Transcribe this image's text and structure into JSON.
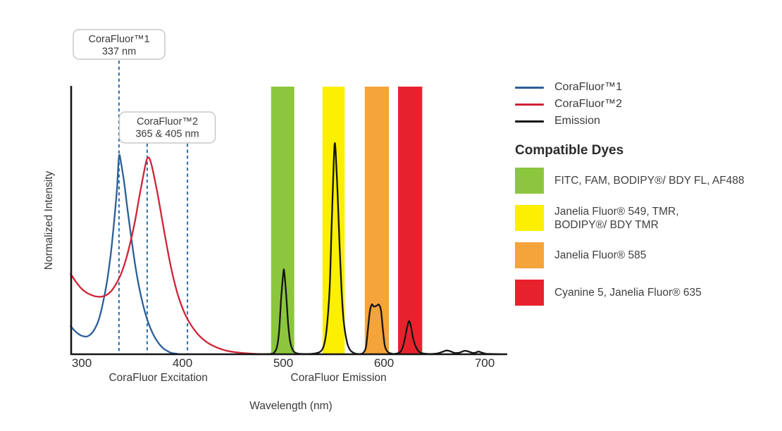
{
  "chart_data": {
    "type": "line",
    "title": "",
    "xlabel": "Wavelength (nm)",
    "ylabel": "Normalized Intensity",
    "x_ticks": [
      300,
      400,
      500,
      600,
      700
    ],
    "xlim": [
      289,
      722
    ],
    "ylim": [
      0,
      1
    ],
    "grid": false,
    "x_sections": [
      {
        "label": "CoraFluor Excitation",
        "center_nm": 376
      },
      {
        "label": "CoraFluor Emission",
        "center_nm": 555
      }
    ],
    "annotations": [
      {
        "lines": [
          "CoraFluor™1",
          "337 nm"
        ],
        "marker_nm": [
          337
        ]
      },
      {
        "lines": [
          "CoraFluor™2",
          "365 & 405 nm"
        ],
        "marker_nm": [
          365,
          405
        ]
      }
    ],
    "marker_color": "#2E6DA8",
    "bands": [
      {
        "name": "green-filter",
        "range_nm": [
          488,
          511
        ],
        "color": "#8CC63E"
      },
      {
        "name": "yellow-filter",
        "range_nm": [
          539,
          561
        ],
        "color": "#FCEF02"
      },
      {
        "name": "orange-filter",
        "range_nm": [
          581,
          605
        ],
        "color": "#F5A33B"
      },
      {
        "name": "red-filter",
        "range_nm": [
          614,
          638
        ],
        "color": "#E8222D"
      }
    ],
    "series": [
      {
        "name": "CoraFluor™1",
        "color": "#2B5F98",
        "points": [
          [
            289,
            0.105
          ],
          [
            293,
            0.088
          ],
          [
            297,
            0.075
          ],
          [
            301,
            0.068
          ],
          [
            305,
            0.066
          ],
          [
            309,
            0.075
          ],
          [
            313,
            0.095
          ],
          [
            317,
            0.13
          ],
          [
            321,
            0.19
          ],
          [
            325,
            0.27
          ],
          [
            329,
            0.38
          ],
          [
            332,
            0.49
          ],
          [
            335,
            0.62
          ],
          [
            337,
            0.74
          ],
          [
            339,
            0.715
          ],
          [
            342,
            0.645
          ],
          [
            345,
            0.555
          ],
          [
            349,
            0.44
          ],
          [
            353,
            0.335
          ],
          [
            357,
            0.25
          ],
          [
            361,
            0.183
          ],
          [
            365,
            0.13
          ],
          [
            369,
            0.09
          ],
          [
            373,
            0.06
          ],
          [
            377,
            0.038
          ],
          [
            381,
            0.022
          ],
          [
            385,
            0.012
          ],
          [
            389,
            0.005
          ],
          [
            394,
            0.002
          ],
          [
            398,
            0
          ]
        ]
      },
      {
        "name": "CoraFluor™2",
        "color": "#D02337",
        "points": [
          [
            289,
            0.3
          ],
          [
            294,
            0.272
          ],
          [
            299,
            0.248
          ],
          [
            304,
            0.232
          ],
          [
            309,
            0.222
          ],
          [
            314,
            0.216
          ],
          [
            319,
            0.215
          ],
          [
            324,
            0.22
          ],
          [
            329,
            0.235
          ],
          [
            334,
            0.262
          ],
          [
            339,
            0.3
          ],
          [
            344,
            0.355
          ],
          [
            349,
            0.43
          ],
          [
            353,
            0.5
          ],
          [
            357,
            0.585
          ],
          [
            361,
            0.665
          ],
          [
            364,
            0.72
          ],
          [
            366,
            0.735
          ],
          [
            368,
            0.725
          ],
          [
            371,
            0.68
          ],
          [
            375,
            0.605
          ],
          [
            379,
            0.52
          ],
          [
            383,
            0.435
          ],
          [
            387,
            0.355
          ],
          [
            391,
            0.285
          ],
          [
            395,
            0.228
          ],
          [
            399,
            0.182
          ],
          [
            403,
            0.146
          ],
          [
            407,
            0.118
          ],
          [
            412,
            0.09
          ],
          [
            417,
            0.068
          ],
          [
            422,
            0.051
          ],
          [
            428,
            0.036
          ],
          [
            435,
            0.024
          ],
          [
            443,
            0.014
          ],
          [
            452,
            0.008
          ],
          [
            462,
            0.004
          ],
          [
            474,
            0.001
          ],
          [
            488,
            0
          ]
        ]
      },
      {
        "name": "Emission",
        "color": "#151515",
        "points": [
          [
            468,
            0
          ],
          [
            486,
            0.001
          ],
          [
            491,
            0.006
          ],
          [
            494,
            0.03
          ],
          [
            496,
            0.09
          ],
          [
            498,
            0.21
          ],
          [
            500,
            0.3
          ],
          [
            501,
            0.31
          ],
          [
            503,
            0.22
          ],
          [
            505,
            0.11
          ],
          [
            507,
            0.045
          ],
          [
            510,
            0.013
          ],
          [
            514,
            0.003
          ],
          [
            520,
            0.001
          ],
          [
            530,
            0.002
          ],
          [
            536,
            0.008
          ],
          [
            540,
            0.028
          ],
          [
            543,
            0.09
          ],
          [
            546,
            0.24
          ],
          [
            548,
            0.47
          ],
          [
            550,
            0.7
          ],
          [
            551,
            0.784
          ],
          [
            552,
            0.76
          ],
          [
            554,
            0.6
          ],
          [
            556,
            0.4
          ],
          [
            558,
            0.235
          ],
          [
            560,
            0.125
          ],
          [
            563,
            0.05
          ],
          [
            566,
            0.018
          ],
          [
            570,
            0.005
          ],
          [
            575,
            0.001
          ],
          [
            579,
            0.004
          ],
          [
            582,
            0.025
          ],
          [
            584,
            0.09
          ],
          [
            586,
            0.16
          ],
          [
            588,
            0.186
          ],
          [
            590,
            0.178
          ],
          [
            593,
            0.182
          ],
          [
            595,
            0.185
          ],
          [
            597,
            0.165
          ],
          [
            599,
            0.09
          ],
          [
            601,
            0.03
          ],
          [
            604,
            0.008
          ],
          [
            608,
            0.002
          ],
          [
            613,
            0.003
          ],
          [
            617,
            0.012
          ],
          [
            620,
            0.045
          ],
          [
            623,
            0.1
          ],
          [
            625,
            0.124
          ],
          [
            627,
            0.1
          ],
          [
            629,
            0.058
          ],
          [
            632,
            0.025
          ],
          [
            635,
            0.009
          ],
          [
            639,
            0.003
          ],
          [
            646,
            0.001
          ],
          [
            653,
            0.003
          ],
          [
            658,
            0.009
          ],
          [
            662,
            0.014
          ],
          [
            666,
            0.011
          ],
          [
            670,
            0.005
          ],
          [
            675,
            0.006
          ],
          [
            680,
            0.013
          ],
          [
            684,
            0.01
          ],
          [
            688,
            0.005
          ],
          [
            691,
            0.006
          ],
          [
            694,
            0.01
          ],
          [
            697,
            0.006
          ],
          [
            701,
            0.002
          ],
          [
            707,
            0.001
          ],
          [
            715,
            0
          ]
        ]
      }
    ]
  },
  "legend": {
    "items": [
      {
        "label": "CoraFluor™1",
        "color": "#2B5F98"
      },
      {
        "label": "CoraFluor™2",
        "color": "#D02337"
      },
      {
        "label": "Emission",
        "color": "#151515"
      }
    ]
  },
  "compatible_dyes": {
    "heading": "Compatible Dyes",
    "items": [
      {
        "color": "#8CC63E",
        "label": "FITC, FAM, BODIPY®/ BDY FL, AF488",
        "label2": ""
      },
      {
        "color": "#FCEF02",
        "label": "Janelia Fluor® 549, TMR,",
        "label2": "BODIPY®/ BDY TMR"
      },
      {
        "color": "#F5A33B",
        "label": "Janelia Fluor® 585",
        "label2": ""
      },
      {
        "color": "#E8222D",
        "label": "Cyanine 5, Janelia Fluor® 635",
        "label2": ""
      }
    ]
  }
}
